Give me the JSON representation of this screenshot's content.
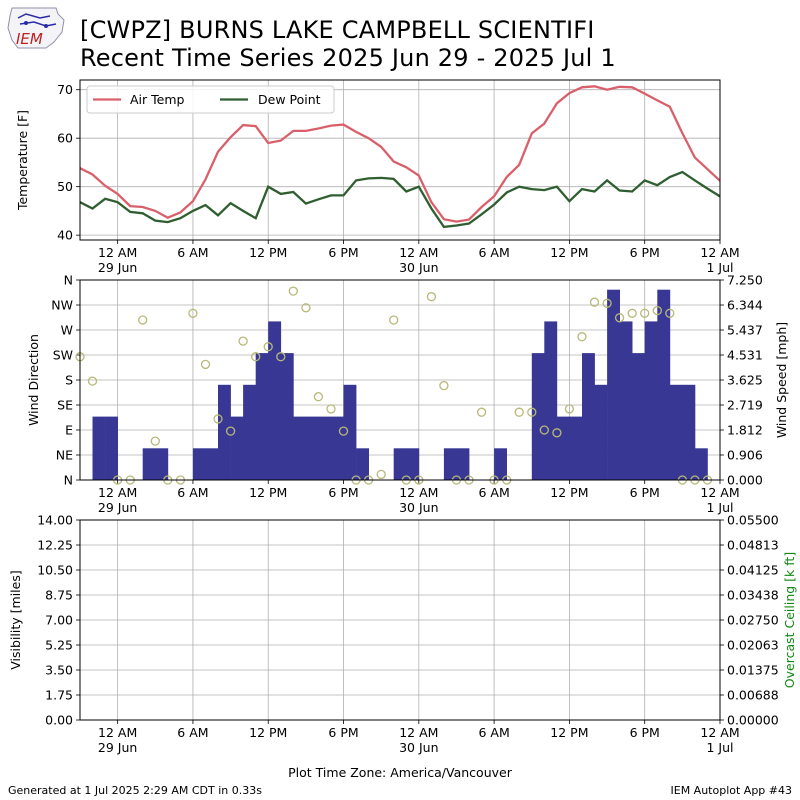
{
  "header": {
    "title_line1": "[CWPZ] BURNS LAKE CAMPBELL SCIENTIFI",
    "title_line2": "Recent Time Series 2025 Jun 29 - 2025 Jul 1",
    "logo_text": "IEM"
  },
  "footer": {
    "generated": "Generated at 1 Jul 2025 2:29 AM CDT in 0.33s",
    "app": "IEM Autoplot App #43",
    "timezone_label": "Plot Time Zone: America/Vancouver"
  },
  "colors": {
    "air_temp": "#d9606a",
    "dew_point": "#2f5e31",
    "wind_speed": "#383894",
    "wind_dir": "#b8b878",
    "ceiling_label": "#118811",
    "grid": "#b0b0b0"
  },
  "chart_data": [
    {
      "type": "line",
      "ylabel": "Temperature [F]",
      "xlabel": "",
      "x_range_hours": [
        -3,
        48
      ],
      "ylim": [
        39,
        72
      ],
      "yticks": [
        40,
        50,
        60,
        70
      ],
      "grid": true,
      "legend_placement": "top-left",
      "x_ticks": [
        {
          "line1": "12 AM",
          "line2": "29 Jun"
        },
        {
          "line1": "6 AM",
          "line2": ""
        },
        {
          "line1": "12 PM",
          "line2": ""
        },
        {
          "line1": "6 PM",
          "line2": ""
        },
        {
          "line1": "12 AM",
          "line2": "30 Jun"
        },
        {
          "line1": "6 AM",
          "line2": ""
        },
        {
          "line1": "12 PM",
          "line2": ""
        },
        {
          "line1": "6 PM",
          "line2": ""
        },
        {
          "line1": "12 AM",
          "line2": "1 Jul"
        }
      ],
      "series": [
        {
          "name": "Air Temp",
          "x": [
            -3,
            -2,
            -1,
            0,
            1,
            2,
            3,
            4,
            5,
            6,
            7,
            8,
            9,
            10,
            11,
            12,
            13,
            14,
            15,
            16,
            17,
            18,
            19,
            20,
            21,
            22,
            23,
            24,
            25,
            26,
            27,
            28,
            29,
            30,
            31,
            32,
            33,
            34,
            35,
            36,
            37,
            38,
            39,
            40,
            41,
            42,
            43,
            44,
            45,
            46,
            47,
            48
          ],
          "values": [
            53.8,
            52.5,
            50.2,
            48.5,
            46.0,
            45.8,
            45.0,
            43.6,
            44.7,
            47.0,
            51.5,
            57.2,
            60.2,
            62.7,
            62.5,
            59.0,
            59.5,
            61.5,
            61.5,
            62.0,
            62.6,
            62.8,
            61.3,
            60.0,
            58.2,
            55.2,
            54.0,
            52.3,
            46.8,
            43.3,
            42.8,
            43.2,
            45.8,
            48.0,
            52.0,
            54.5,
            61.0,
            63.0,
            67.2,
            69.3,
            70.5,
            70.7,
            70.0,
            70.6,
            70.5,
            69.2,
            67.8,
            66.5,
            61.0,
            56.0,
            53.6,
            51.2
          ]
        },
        {
          "name": "Dew Point",
          "x": [
            -3,
            -2,
            -1,
            0,
            1,
            2,
            3,
            4,
            5,
            6,
            7,
            8,
            9,
            10,
            11,
            12,
            13,
            14,
            15,
            16,
            17,
            18,
            19,
            20,
            21,
            22,
            23,
            24,
            25,
            26,
            27,
            28,
            29,
            30,
            31,
            32,
            33,
            34,
            35,
            36,
            37,
            38,
            39,
            40,
            41,
            42,
            43,
            44,
            45,
            46,
            47,
            48
          ],
          "values": [
            46.8,
            45.5,
            47.5,
            46.8,
            44.8,
            44.5,
            43.0,
            42.7,
            43.5,
            45.0,
            46.2,
            44.1,
            46.6,
            45.0,
            43.5,
            50.0,
            48.5,
            48.9,
            46.5,
            47.4,
            48.2,
            48.2,
            51.3,
            51.7,
            51.8,
            51.6,
            49.0,
            50.0,
            45.5,
            41.7,
            42.0,
            42.4,
            44.3,
            46.3,
            48.8,
            50.0,
            49.5,
            49.3,
            50.0,
            47.0,
            49.5,
            49.0,
            51.3,
            49.2,
            49.0,
            51.3,
            50.3,
            52.0,
            53.0,
            51.3,
            49.6,
            48.0
          ]
        }
      ]
    },
    {
      "type": "bar",
      "ylabel": "Wind Direction",
      "y2label": "Wind Speed [mph]",
      "x_range_hours": [
        -3,
        48
      ],
      "ylim": [
        0,
        360
      ],
      "y2lim": [
        0,
        7.25
      ],
      "yticks": [
        "N",
        "NE",
        "E",
        "SE",
        "S",
        "SW",
        "W",
        "NW",
        "N"
      ],
      "y2ticks": [
        "0.000",
        "0.906",
        "1.812",
        "2.719",
        "3.625",
        "4.531",
        "5.437",
        "6.344",
        "7.250"
      ],
      "grid": true,
      "x_ticks": [
        {
          "line1": "12 AM",
          "line2": "29 Jun"
        },
        {
          "line1": "6 AM",
          "line2": ""
        },
        {
          "line1": "12 PM",
          "line2": ""
        },
        {
          "line1": "6 PM",
          "line2": ""
        },
        {
          "line1": "12 AM",
          "line2": "30 Jun"
        },
        {
          "line1": "6 AM",
          "line2": ""
        },
        {
          "line1": "12 PM",
          "line2": ""
        },
        {
          "line1": "6 PM",
          "line2": ""
        },
        {
          "line1": "12 AM",
          "line2": "1 Jul"
        }
      ],
      "series": [
        {
          "name": "Wind Speed",
          "x": [
            -3,
            -2,
            -1,
            0,
            1,
            2,
            3,
            4,
            5,
            6,
            7,
            8,
            9,
            10,
            11,
            12,
            13,
            14,
            15,
            16,
            17,
            18,
            19,
            20,
            21,
            22,
            23,
            24,
            25,
            26,
            27,
            28,
            29,
            30,
            31,
            32,
            33,
            34,
            35,
            36,
            37,
            38,
            39,
            40,
            41,
            42,
            43,
            44,
            45,
            46,
            47,
            48
          ],
          "values": [
            0,
            2.3,
            2.3,
            0,
            0,
            1.15,
            1.15,
            0,
            0,
            1.15,
            1.15,
            3.45,
            2.3,
            3.45,
            4.6,
            5.75,
            4.6,
            2.3,
            2.3,
            2.3,
            2.3,
            3.45,
            1.15,
            0,
            0,
            1.15,
            1.15,
            0,
            0,
            1.15,
            1.15,
            0,
            0,
            1.15,
            0,
            0,
            4.6,
            5.75,
            2.3,
            2.3,
            4.6,
            3.45,
            6.9,
            5.75,
            4.6,
            5.75,
            6.9,
            3.45,
            3.45,
            1.15,
            0,
            0
          ]
        },
        {
          "name": "Wind Direction",
          "x": [
            -3,
            -2,
            0,
            1,
            2,
            3,
            4,
            5,
            6,
            7,
            8,
            9,
            10,
            11,
            12,
            13,
            14,
            15,
            16,
            17,
            18,
            19,
            20,
            21,
            22,
            23,
            24,
            25,
            26,
            27,
            28,
            29,
            30,
            31,
            32,
            33,
            34,
            35,
            36,
            37,
            38,
            39,
            40,
            41,
            42,
            43,
            44,
            45,
            46,
            47
          ],
          "values": [
            222,
            178,
            0,
            0,
            288,
            70,
            0,
            0,
            300,
            208,
            110,
            88,
            250,
            222,
            240,
            222,
            340,
            310,
            150,
            128,
            88,
            0,
            0,
            10,
            288,
            0,
            0,
            330,
            170,
            0,
            0,
            122,
            0,
            0,
            122,
            122,
            90,
            85,
            128,
            258,
            320,
            318,
            292,
            300,
            300,
            305,
            300,
            0,
            0,
            0
          ]
        }
      ]
    },
    {
      "type": "line",
      "ylabel": "Visibility [miles]",
      "y2label": "Overcast Ceiling [k ft]",
      "x_range_hours": [
        -3,
        48
      ],
      "ylim": [
        0,
        14
      ],
      "y2lim": [
        0,
        0.055
      ],
      "yticks": [
        "0.00",
        "1.75",
        "3.50",
        "5.25",
        "7.00",
        "8.75",
        "10.50",
        "12.25",
        "14.00"
      ],
      "y2ticks": [
        "0.00000",
        "0.00688",
        "0.01375",
        "0.02063",
        "0.02750",
        "0.03438",
        "0.04125",
        "0.04813",
        "0.05500"
      ],
      "grid": true,
      "x_ticks": [
        {
          "line1": "12 AM",
          "line2": "29 Jun"
        },
        {
          "line1": "6 AM",
          "line2": ""
        },
        {
          "line1": "12 PM",
          "line2": ""
        },
        {
          "line1": "6 PM",
          "line2": ""
        },
        {
          "line1": "12 AM",
          "line2": "30 Jun"
        },
        {
          "line1": "6 AM",
          "line2": ""
        },
        {
          "line1": "12 PM",
          "line2": ""
        },
        {
          "line1": "6 PM",
          "line2": ""
        },
        {
          "line1": "12 AM",
          "line2": "1 Jul"
        }
      ],
      "series": []
    }
  ]
}
